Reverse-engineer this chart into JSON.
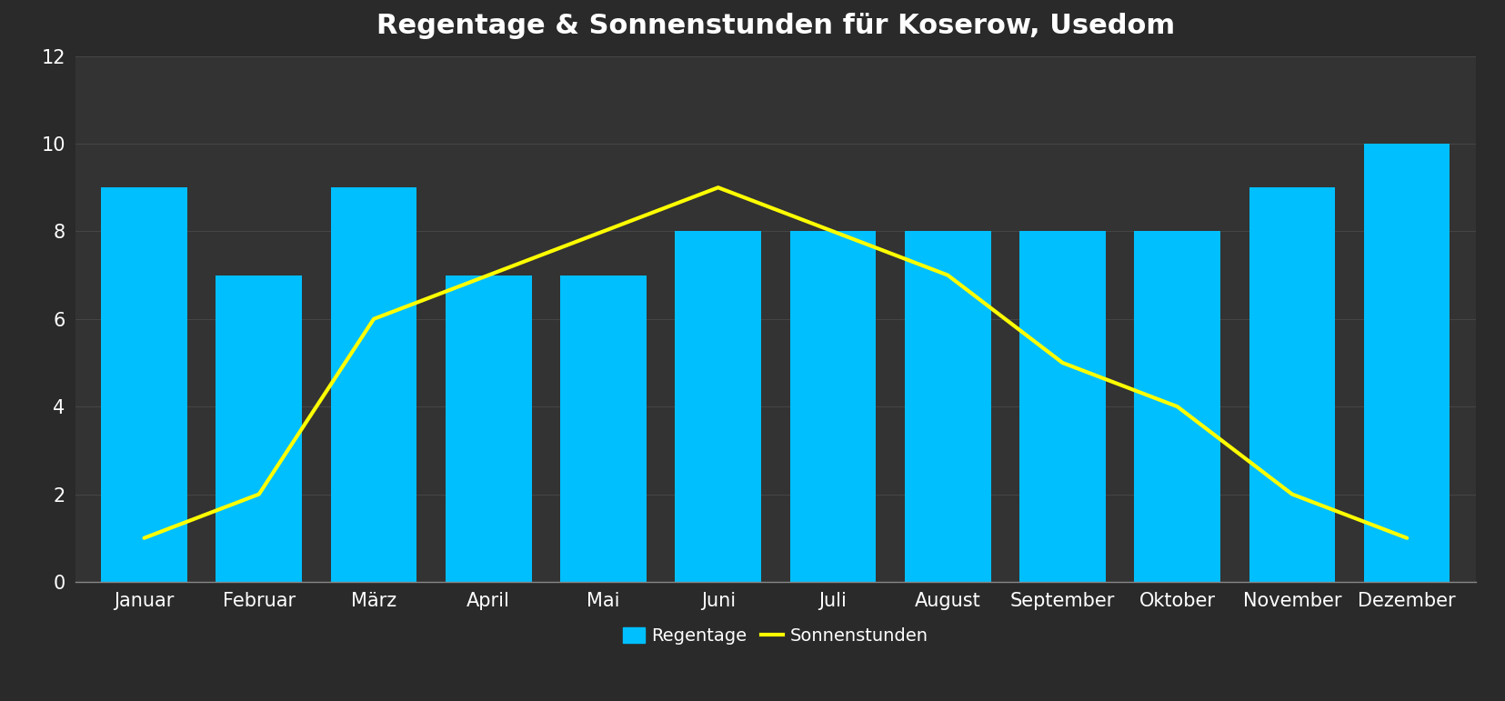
{
  "title": "Regentage & Sonnenstunden für Koserow, Usedom",
  "months": [
    "Januar",
    "Februar",
    "März",
    "April",
    "Mai",
    "Juni",
    "Juli",
    "August",
    "September",
    "Oktober",
    "November",
    "Dezember"
  ],
  "regentage": [
    9,
    7,
    9,
    7,
    7,
    8,
    8,
    8,
    8,
    8,
    9,
    10
  ],
  "sonnenstunden": [
    1,
    2,
    6,
    7,
    8,
    9,
    8,
    7,
    5,
    4,
    2,
    1
  ],
  "bar_color": "#00BFFF",
  "line_color": "#FFFF00",
  "background_color": "#2e2e2e",
  "plot_bg_color": "#383838",
  "text_color": "#ffffff",
  "grid_color": "#4a4a4a",
  "ylim": [
    0,
    12
  ],
  "yticks": [
    0,
    2,
    4,
    6,
    8,
    10,
    12
  ],
  "title_fontsize": 22,
  "tick_fontsize": 15,
  "legend_fontsize": 14,
  "bar_width": 0.75,
  "line_width": 3.0
}
